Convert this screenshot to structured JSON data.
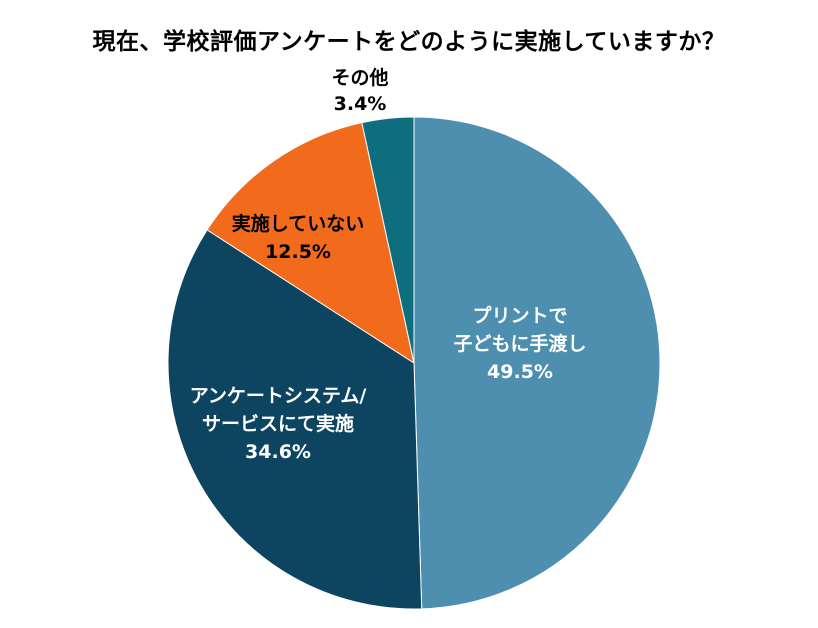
{
  "chart_data": {
    "type": "pie",
    "title": "現在、学校評価アンケートをどのように実施していますか？",
    "slices": [
      {
        "label_lines": [
          "プリントで",
          "子どもに手渡し"
        ],
        "value": 49.5,
        "value_label": "49.5%",
        "color": "#4e8fb0",
        "text_color": "#ffffff"
      },
      {
        "label_lines": [
          "アンケートシステム/",
          "サービスにて実施"
        ],
        "value": 34.6,
        "value_label": "34.6%",
        "color": "#0d4560",
        "text_color": "#ffffff"
      },
      {
        "label_lines": [
          "実施していない"
        ],
        "value": 12.5,
        "value_label": "12.5%",
        "color": "#f26a1b",
        "text_color": "#000000"
      },
      {
        "label_lines": [
          "その他"
        ],
        "value": 3.4,
        "value_label": "3.4%",
        "color": "#0f6e7e",
        "text_color": "#000000"
      }
    ]
  }
}
